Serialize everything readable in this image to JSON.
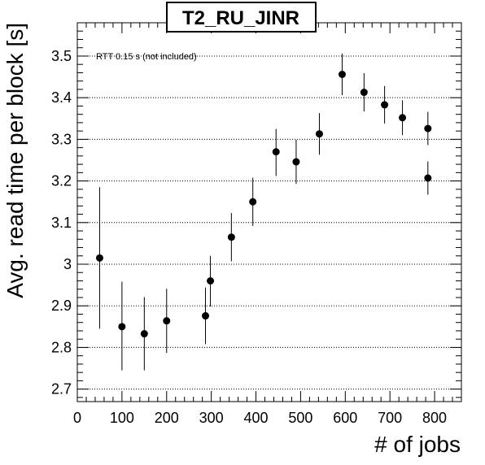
{
  "chart_data": {
    "type": "scatter",
    "title": "T2_RU_JINR",
    "annotation": "RTT 0.15 s (not included)",
    "xlabel": "# of jobs",
    "ylabel": "Avg. read time per block [s]",
    "xlim": [
      0,
      860
    ],
    "ylim": [
      2.67,
      3.58
    ],
    "x_ticks": [
      0,
      100,
      200,
      300,
      400,
      500,
      600,
      700,
      800
    ],
    "x_tick_labels": [
      "0",
      "100",
      "200",
      "300",
      "400",
      "500",
      "600",
      "700",
      "800"
    ],
    "y_ticks": [
      2.7,
      2.8,
      2.9,
      3.0,
      3.1,
      3.2,
      3.3,
      3.4,
      3.5
    ],
    "y_tick_labels": [
      "2.7",
      "2.8",
      "2.9",
      "3",
      "3.1",
      "3.2",
      "3.3",
      "3.4",
      "3.5"
    ],
    "grid": {
      "horizontal": true,
      "vertical": false,
      "style": "dotted"
    },
    "points": [
      {
        "x": 50,
        "y": 3.015,
        "err_low": 0.17,
        "err_high": 0.17
      },
      {
        "x": 100,
        "y": 2.85,
        "err_low": 0.105,
        "err_high": 0.108
      },
      {
        "x": 150,
        "y": 2.833,
        "err_low": 0.088,
        "err_high": 0.088
      },
      {
        "x": 200,
        "y": 2.864,
        "err_low": 0.077,
        "err_high": 0.077
      },
      {
        "x": 287,
        "y": 2.876,
        "err_low": 0.068,
        "err_high": 0.068
      },
      {
        "x": 298,
        "y": 2.96,
        "err_low": 0.062,
        "err_high": 0.06
      },
      {
        "x": 345,
        "y": 3.065,
        "err_low": 0.058,
        "err_high": 0.058
      },
      {
        "x": 393,
        "y": 3.15,
        "err_low": 0.058,
        "err_high": 0.058
      },
      {
        "x": 445,
        "y": 3.27,
        "err_low": 0.058,
        "err_high": 0.055
      },
      {
        "x": 490,
        "y": 3.246,
        "err_low": 0.053,
        "err_high": 0.053
      },
      {
        "x": 542,
        "y": 3.313,
        "err_low": 0.05,
        "err_high": 0.05
      },
      {
        "x": 593,
        "y": 3.456,
        "err_low": 0.05,
        "err_high": 0.05
      },
      {
        "x": 642,
        "y": 3.413,
        "err_low": 0.046,
        "err_high": 0.046
      },
      {
        "x": 688,
        "y": 3.383,
        "err_low": 0.045,
        "err_high": 0.045
      },
      {
        "x": 728,
        "y": 3.352,
        "err_low": 0.042,
        "err_high": 0.042
      },
      {
        "x": 785,
        "y": 3.326,
        "err_low": 0.04,
        "err_high": 0.04
      },
      {
        "x": 785,
        "y": 3.207,
        "err_low": 0.04,
        "err_high": 0.04
      }
    ]
  }
}
